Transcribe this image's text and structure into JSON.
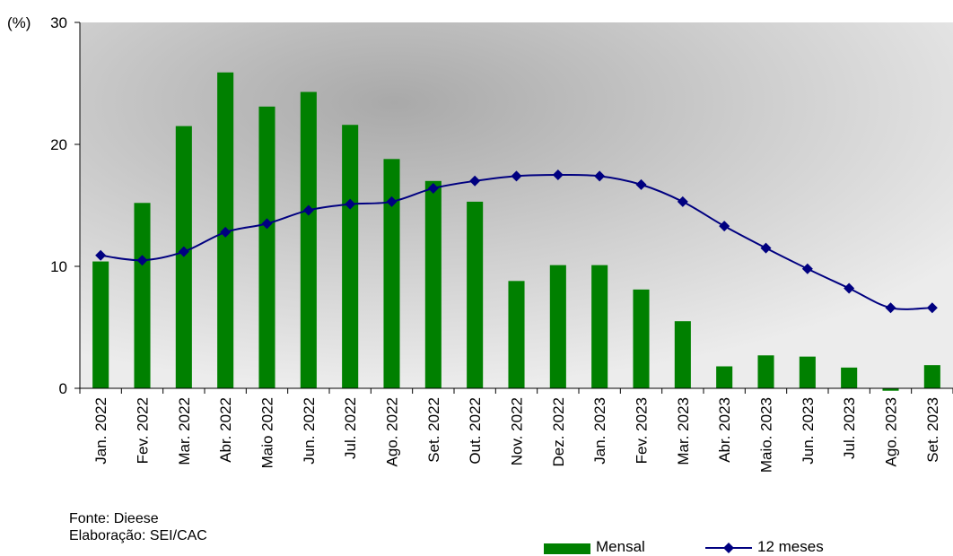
{
  "chart_data": {
    "type": "bar+line",
    "y_unit_label": "(%)",
    "ylim": [
      0,
      30
    ],
    "y_ticks": [
      "0",
      "10",
      "20",
      "30"
    ],
    "categories": [
      "Jan. 2022",
      "Fev. 2022",
      "Mar. 2022",
      "Abr. 2022",
      "Maio 2022",
      "Jun. 2022",
      "Jul. 2022",
      "Ago. 2022",
      "Set. 2022",
      "Out. 2022",
      "Nov. 2022",
      "Dez. 2022",
      "Jan. 2023",
      "Fev. 2023",
      "Mar. 2023",
      "Abr. 2023",
      "Maio. 2023",
      "Jun. 2023",
      "Jul. 2023",
      "Ago. 2023",
      "Set. 2023"
    ],
    "series": [
      {
        "name": "Mensal",
        "kind": "bar",
        "color": "#008000",
        "values": [
          10.4,
          15.2,
          21.5,
          25.9,
          23.1,
          24.3,
          21.6,
          18.8,
          17.0,
          15.3,
          8.8,
          10.1,
          10.1,
          8.1,
          5.5,
          1.8,
          2.7,
          2.6,
          1.7,
          -0.2,
          1.9
        ]
      },
      {
        "name": "12 meses",
        "kind": "line",
        "color": "#000080",
        "values": [
          10.9,
          10.5,
          11.2,
          12.8,
          13.5,
          14.6,
          15.1,
          15.3,
          16.4,
          17.0,
          17.4,
          17.5,
          17.4,
          16.7,
          15.3,
          13.3,
          11.5,
          9.8,
          8.2,
          6.6,
          6.6
        ]
      }
    ],
    "grid": false,
    "legend_position": "bottom-right"
  },
  "footer": {
    "source": "Fonte: Dieese",
    "elaboration": "Elaboração: SEI/CAC"
  },
  "legend": {
    "bar_label": "Mensal",
    "line_label": "12 meses"
  }
}
